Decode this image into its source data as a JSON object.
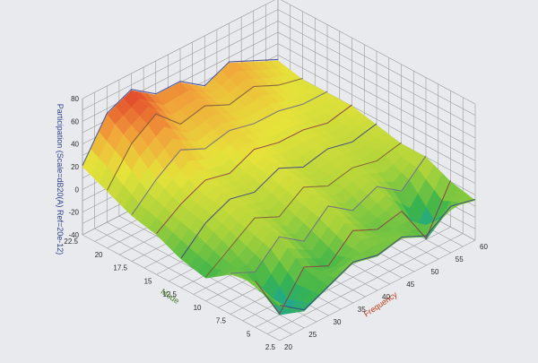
{
  "colors": {
    "background": "#e9eaed",
    "grid": "#9a9a9a",
    "z_axis_label": "#2b3f8c",
    "y_axis_label": "#4a7a2a",
    "x_axis_label": "#b83a1a",
    "palette": [
      "#16a3a8",
      "#3bb44a",
      "#a8d23a",
      "#e6e23a",
      "#f2a33a",
      "#e0402a"
    ],
    "mesh_lines": [
      "#3a3f8a",
      "#8a3a4a",
      "#6a6a8a",
      "#7a5a3a"
    ]
  },
  "chart_data": {
    "type": "surface-3d",
    "title": "",
    "x_axis": {
      "label": "Frequency",
      "range": [
        20,
        60
      ],
      "ticks": [
        "20",
        "25",
        "30",
        "35",
        "40",
        "45",
        "50",
        "55",
        "60"
      ]
    },
    "y_axis": {
      "label": "Mode",
      "range": [
        2.5,
        22.5
      ],
      "ticks": [
        "2.5",
        "5",
        "7.5",
        "10",
        "12.5",
        "15",
        "17.5",
        "20",
        "22.5"
      ]
    },
    "z_axis": {
      "label": "Participation (Scale=dB20(A) Ref=20e-12)",
      "range": [
        -40,
        80
      ],
      "ticks": [
        "-40",
        "-20",
        "0",
        "20",
        "40",
        "60",
        "80"
      ]
    },
    "grid": true,
    "colormap": "teal-green-yellow-orange-red",
    "surface": {
      "x": [
        20,
        25,
        30,
        35,
        40,
        45,
        50,
        55,
        60
      ],
      "y": [
        2.5,
        5,
        7.5,
        10,
        12.5,
        15,
        17.5,
        20,
        22.5
      ],
      "z": [
        [
          -10,
          -25,
          -15,
          -5,
          -10,
          -5,
          -15,
          0,
          -5
        ],
        [
          0,
          -40,
          -10,
          -20,
          0,
          -10,
          -5,
          -40,
          0
        ],
        [
          -5,
          -15,
          5,
          -10,
          10,
          -5,
          5,
          -10,
          10
        ],
        [
          -20,
          -5,
          10,
          0,
          15,
          5,
          10,
          5,
          10
        ],
        [
          -15,
          5,
          15,
          10,
          20,
          10,
          15,
          10,
          15
        ],
        [
          -5,
          10,
          20,
          15,
          25,
          20,
          20,
          15,
          20
        ],
        [
          0,
          20,
          35,
          25,
          30,
          25,
          25,
          20,
          20
        ],
        [
          10,
          40,
          55,
          35,
          40,
          30,
          35,
          25,
          20
        ],
        [
          20,
          55,
          65,
          50,
          50,
          35,
          45,
          35,
          25
        ]
      ]
    }
  }
}
